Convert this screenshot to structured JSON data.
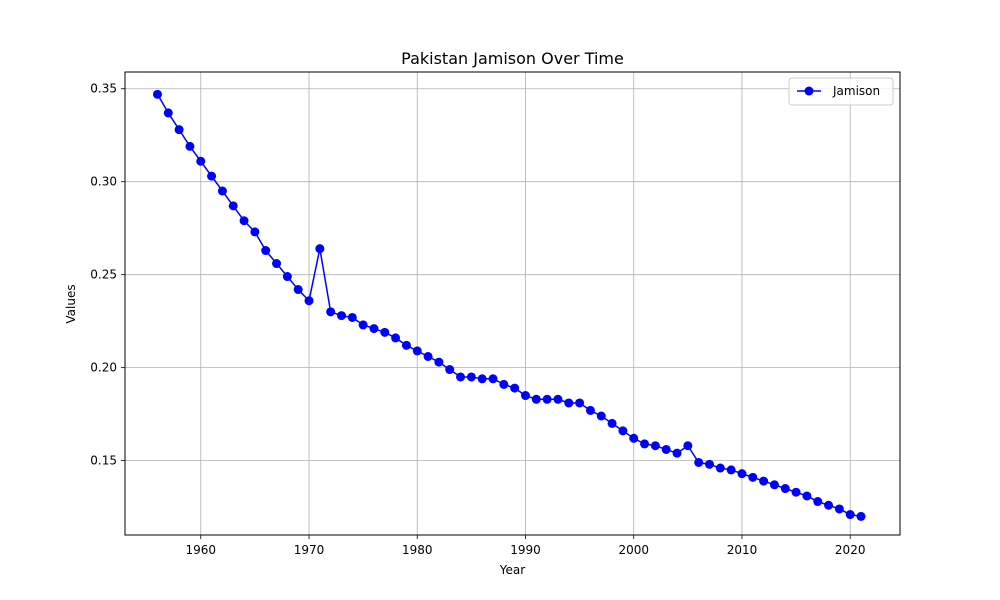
{
  "chart_data": {
    "type": "line",
    "title": "Pakistan Jamison Over Time",
    "xlabel": "Year",
    "ylabel": "Values",
    "xlim": [
      1953,
      2024.6
    ],
    "ylim": [
      0.11,
      0.359
    ],
    "xticks": [
      1960,
      1970,
      1980,
      1990,
      2000,
      2010,
      2020
    ],
    "yticks": [
      0.15,
      0.2,
      0.25,
      0.3,
      0.35
    ],
    "ytick_labels": [
      "0.15",
      "0.20",
      "0.25",
      "0.30",
      "0.35"
    ],
    "grid": true,
    "legend_position": "top-right",
    "series": [
      {
        "name": "Jamison",
        "color": "#0000ff",
        "marker": "circle",
        "x": [
          1956,
          1957,
          1958,
          1959,
          1960,
          1961,
          1962,
          1963,
          1964,
          1965,
          1966,
          1967,
          1968,
          1969,
          1970,
          1971,
          1972,
          1973,
          1974,
          1975,
          1976,
          1977,
          1978,
          1979,
          1980,
          1981,
          1982,
          1983,
          1984,
          1985,
          1986,
          1987,
          1988,
          1989,
          1990,
          1991,
          1992,
          1993,
          1994,
          1995,
          1996,
          1997,
          1998,
          1999,
          2000,
          2001,
          2002,
          2003,
          2004,
          2005,
          2006,
          2007,
          2008,
          2009,
          2010,
          2011,
          2012,
          2013,
          2014,
          2015,
          2016,
          2017,
          2018,
          2019,
          2020,
          2021
        ],
        "y": [
          0.347,
          0.337,
          0.328,
          0.319,
          0.311,
          0.303,
          0.295,
          0.287,
          0.279,
          0.273,
          0.263,
          0.256,
          0.249,
          0.242,
          0.236,
          0.264,
          0.23,
          0.228,
          0.227,
          0.223,
          0.221,
          0.219,
          0.216,
          0.212,
          0.209,
          0.206,
          0.203,
          0.199,
          0.195,
          0.195,
          0.194,
          0.194,
          0.191,
          0.189,
          0.185,
          0.183,
          0.183,
          0.183,
          0.181,
          0.181,
          0.177,
          0.174,
          0.17,
          0.166,
          0.162,
          0.159,
          0.158,
          0.156,
          0.154,
          0.158,
          0.149,
          0.148,
          0.146,
          0.145,
          0.143,
          0.141,
          0.139,
          0.137,
          0.135,
          0.133,
          0.131,
          0.128,
          0.126,
          0.124,
          0.121,
          0.12
        ]
      }
    ]
  }
}
